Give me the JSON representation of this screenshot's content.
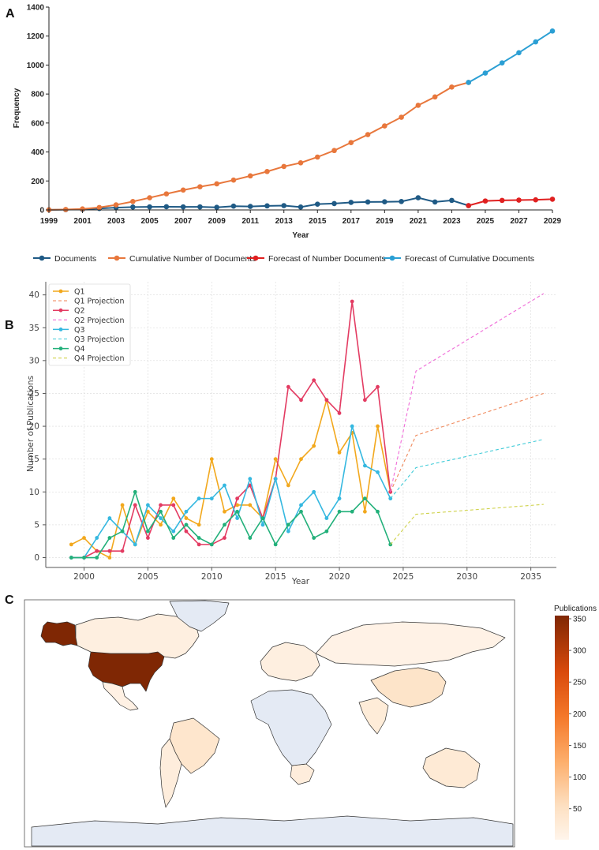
{
  "panels": {
    "a": {
      "letter": "A"
    },
    "b": {
      "letter": "B"
    },
    "c": {
      "letter": "C"
    }
  },
  "chart_data": [
    {
      "id": "A",
      "type": "line",
      "xlabel": "Year",
      "ylabel": "Frequency",
      "xlim": [
        1999,
        2029
      ],
      "ylim": [
        0,
        1400
      ],
      "xticks": [
        "1999",
        "2001",
        "2003",
        "2005",
        "2007",
        "2009",
        "2011",
        "2013",
        "2015",
        "2017",
        "2019",
        "2021",
        "2023",
        "2025",
        "2027",
        "2029"
      ],
      "yticks": [
        "0",
        "200",
        "400",
        "600",
        "800",
        "1000",
        "1200",
        "1400"
      ],
      "legend_position": "bottom",
      "series": [
        {
          "name": "Documents",
          "color": "#1f5a85",
          "x": [
            1999,
            2000,
            2001,
            2002,
            2003,
            2004,
            2005,
            2006,
            2007,
            2008,
            2009,
            2010,
            2011,
            2012,
            2013,
            2014,
            2015,
            2016,
            2017,
            2018,
            2019,
            2020,
            2021,
            2022,
            2023,
            2024
          ],
          "values": [
            1,
            2,
            4,
            10,
            16,
            20,
            21,
            22,
            21,
            21,
            18,
            26,
            24,
            28,
            30,
            20,
            40,
            44,
            52,
            55,
            56,
            58,
            84,
            55,
            66,
            30
          ]
        },
        {
          "name": "Cumulative Number of Documents",
          "color": "#e8773c",
          "x": [
            1999,
            2000,
            2001,
            2002,
            2003,
            2004,
            2005,
            2006,
            2007,
            2008,
            2009,
            2010,
            2011,
            2012,
            2013,
            2014,
            2015,
            2016,
            2017,
            2018,
            2019,
            2020,
            2021,
            2022,
            2023,
            2024
          ],
          "values": [
            1,
            3,
            7,
            17,
            35,
            58,
            84,
            111,
            137,
            160,
            180,
            206,
            235,
            265,
            300,
            325,
            365,
            410,
            465,
            520,
            580,
            640,
            722,
            780,
            848,
            880
          ]
        },
        {
          "name": "Forecast of Number Documents",
          "color": "#e02020",
          "x": [
            2024,
            2025,
            2026,
            2027,
            2028,
            2029
          ],
          "values": [
            30,
            62,
            66,
            68,
            70,
            74
          ]
        },
        {
          "name": "Forecast of Cumulative Documents",
          "color": "#2b9fd4",
          "x": [
            2024,
            2025,
            2026,
            2027,
            2028,
            2029
          ],
          "values": [
            880,
            945,
            1015,
            1085,
            1160,
            1235
          ]
        }
      ]
    },
    {
      "id": "B",
      "type": "line",
      "xlabel": "Year",
      "ylabel": "Number of Publications",
      "xlim": [
        1997,
        2037
      ],
      "ylim": [
        -1.5,
        42
      ],
      "xticks": [
        "2000",
        "2005",
        "2010",
        "2015",
        "2020",
        "2025",
        "2030",
        "2035"
      ],
      "yticks": [
        "0",
        "5",
        "10",
        "15",
        "20",
        "25",
        "30",
        "35",
        "40"
      ],
      "grid": true,
      "legend_position": "top-left",
      "series": [
        {
          "name": "Q1",
          "color": "#f2a81d",
          "x": [
            1999,
            2000,
            2001,
            2002,
            2003,
            2004,
            2005,
            2006,
            2007,
            2008,
            2009,
            2010,
            2011,
            2012,
            2013,
            2014,
            2015,
            2016,
            2017,
            2018,
            2019,
            2020,
            2021,
            2022,
            2023,
            2024
          ],
          "values": [
            2,
            3,
            1,
            0,
            8,
            2,
            7,
            5,
            9,
            6,
            5,
            15,
            7,
            8,
            8,
            6,
            15,
            11,
            15,
            17,
            24,
            16,
            19,
            7,
            20,
            10
          ]
        },
        {
          "name": "Q1 Projection",
          "color": "#f08a5d",
          "dashed": true,
          "x": [
            2024,
            2026,
            2036
          ],
          "values": [
            10,
            18.6,
            25
          ]
        },
        {
          "name": "Q2",
          "color": "#e33b62",
          "x": [
            1999,
            2000,
            2001,
            2002,
            2003,
            2004,
            2005,
            2006,
            2007,
            2008,
            2009,
            2010,
            2011,
            2012,
            2013,
            2014,
            2015,
            2016,
            2017,
            2018,
            2019,
            2020,
            2021,
            2022,
            2023,
            2024
          ],
          "values": [
            0,
            0,
            1,
            1,
            1,
            8,
            3,
            8,
            8,
            4,
            2,
            2,
            3,
            9,
            11,
            6,
            12,
            26,
            24,
            27,
            24,
            22,
            39,
            24,
            26,
            10
          ]
        },
        {
          "name": "Q2 Projection",
          "color": "#f06ad8",
          "dashed": true,
          "x": [
            2024,
            2026,
            2036
          ],
          "values": [
            10,
            28.4,
            40.2
          ]
        },
        {
          "name": "Q3",
          "color": "#35b8e0",
          "x": [
            1999,
            2000,
            2001,
            2002,
            2003,
            2004,
            2005,
            2006,
            2007,
            2008,
            2009,
            2010,
            2011,
            2012,
            2013,
            2014,
            2015,
            2016,
            2017,
            2018,
            2019,
            2020,
            2021,
            2022,
            2023,
            2024
          ],
          "values": [
            0,
            0,
            3,
            6,
            4,
            2,
            8,
            6,
            4,
            7,
            9,
            9,
            11,
            6,
            12,
            5,
            12,
            4,
            8,
            10,
            6,
            9,
            20,
            14,
            13,
            9
          ]
        },
        {
          "name": "Q3 Projection",
          "color": "#3fcbd8",
          "dashed": true,
          "x": [
            2024,
            2026,
            2036
          ],
          "values": [
            9,
            13.7,
            18
          ]
        },
        {
          "name": "Q4",
          "color": "#22b07a",
          "x": [
            1999,
            2000,
            2001,
            2002,
            2003,
            2004,
            2005,
            2006,
            2007,
            2008,
            2009,
            2010,
            2011,
            2012,
            2013,
            2014,
            2015,
            2016,
            2017,
            2018,
            2019,
            2020,
            2021,
            2022,
            2023,
            2024
          ],
          "values": [
            0,
            0,
            0,
            3,
            4,
            10,
            4,
            7,
            3,
            5,
            3,
            2,
            5,
            7,
            3,
            6,
            2,
            5,
            7,
            3,
            4,
            7,
            7,
            9,
            7,
            2
          ]
        },
        {
          "name": "Q4 Projection",
          "color": "#cfd24a",
          "dashed": true,
          "x": [
            2024,
            2026,
            2036
          ],
          "values": [
            2,
            6.6,
            8.1
          ]
        }
      ]
    },
    {
      "id": "C",
      "type": "heatmap",
      "subtype": "choropleth",
      "colorbar_title": "Publications",
      "colorbar_ticks": [
        "350",
        "300",
        "250",
        "200",
        "150",
        "100",
        "50"
      ],
      "colorbar_range": [
        1,
        355
      ],
      "no_data_color": "#e4eaf4",
      "regions": [
        {
          "name": "Alaska",
          "value": 355
        },
        {
          "name": "United States",
          "value": 355
        },
        {
          "name": "Canada",
          "value": 15
        },
        {
          "name": "Greenland",
          "value": 0
        },
        {
          "name": "Mexico",
          "value": 10
        },
        {
          "name": "Brazil",
          "value": 40
        },
        {
          "name": "Chile",
          "value": 20
        },
        {
          "name": "Europe",
          "value": 15
        },
        {
          "name": "Russia",
          "value": 8
        },
        {
          "name": "China",
          "value": 45
        },
        {
          "name": "India",
          "value": 25
        },
        {
          "name": "Australia",
          "value": 30
        },
        {
          "name": "Southern Africa",
          "value": 20
        },
        {
          "name": "Africa",
          "value": 0
        },
        {
          "name": "Antarctica",
          "value": 0
        }
      ]
    }
  ]
}
